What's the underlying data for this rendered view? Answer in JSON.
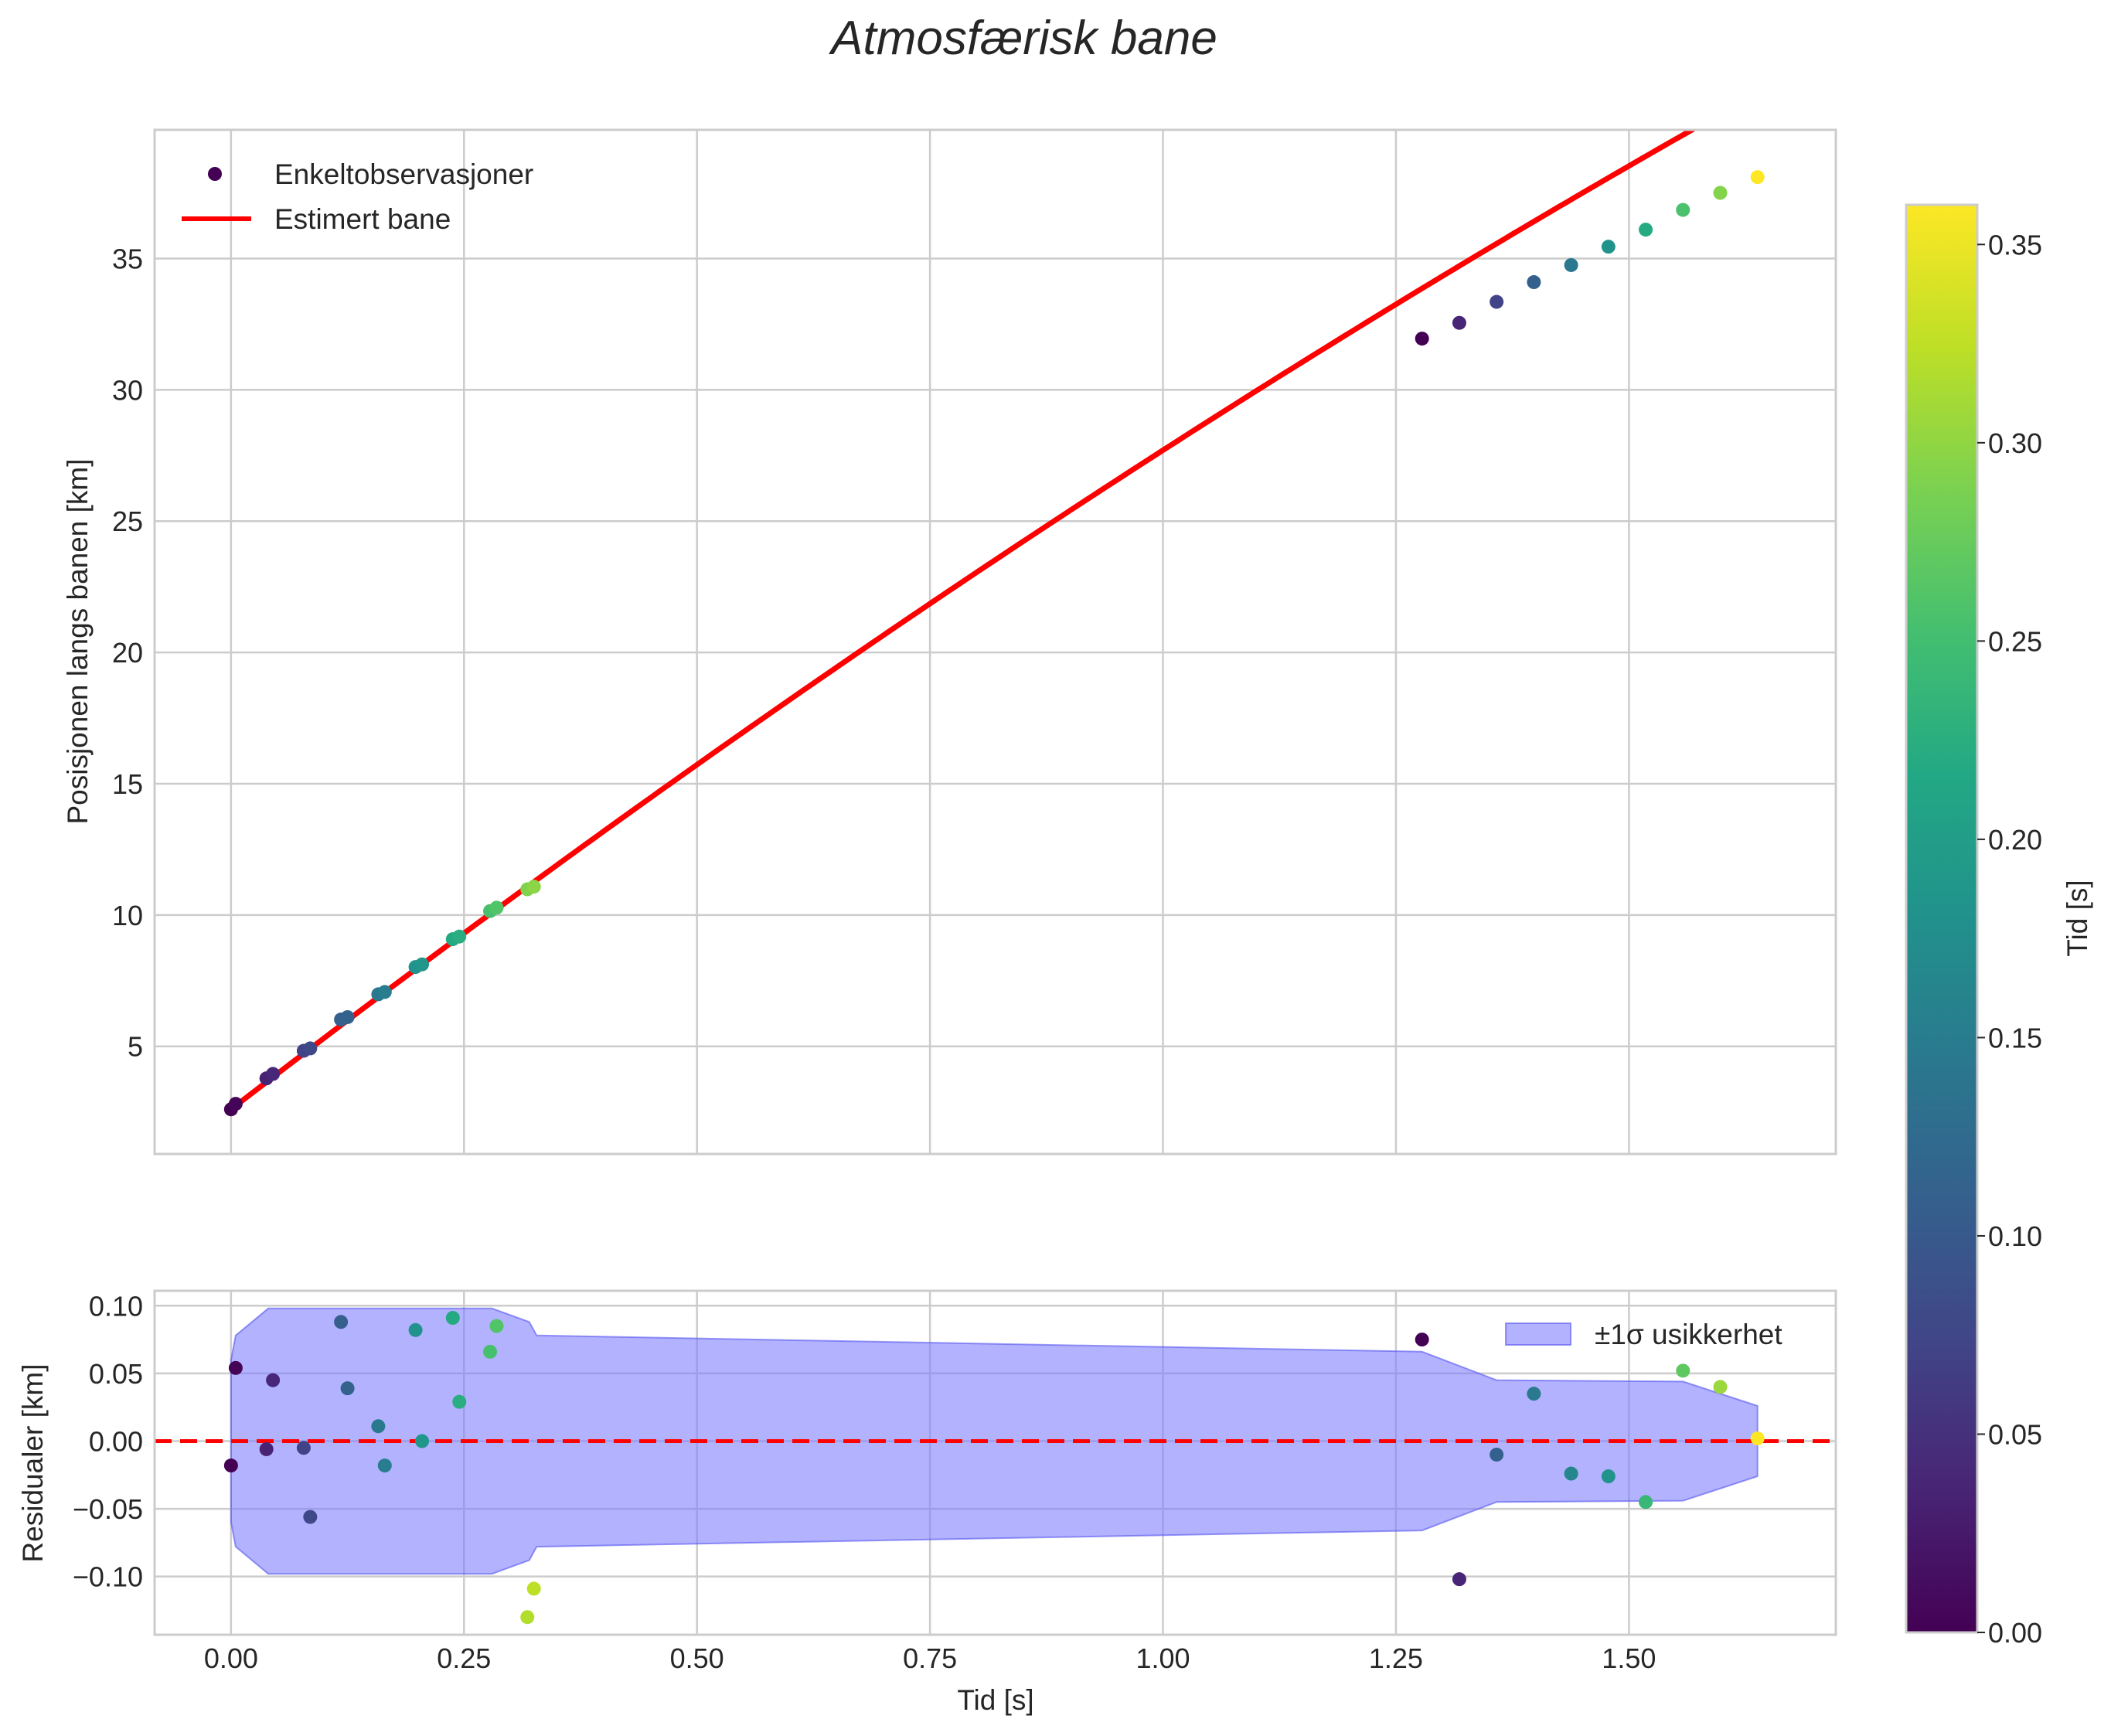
{
  "figure": {
    "title": "Atmosfærisk bane"
  },
  "chart_data": [
    {
      "type": "scatter",
      "panel": "top",
      "xlabel": "",
      "ylabel": "Posisjonen langs banen [km]",
      "xlim": [
        -0.082,
        1.722
      ],
      "ylim": [
        0.9,
        39.9
      ],
      "xticks": [
        0.0,
        0.25,
        0.5,
        0.75,
        1.0,
        1.25,
        1.5
      ],
      "yticks": [
        5,
        10,
        15,
        20,
        25,
        30,
        35
      ],
      "ytick_labels": [
        "5",
        "10",
        "15",
        "20",
        "25",
        "30",
        "35"
      ],
      "grid": true,
      "legend": {
        "placement": "top-left",
        "entries": [
          "Enkeltobservasjoner",
          "Estimert bane"
        ]
      },
      "series": [
        {
          "name": "Enkeltobservasjoner",
          "kind": "scatter",
          "color_by": "Tid [s]",
          "points": [
            {
              "t": 0.0,
              "y": 2.6,
              "c": 0.0
            },
            {
              "t": 0.005,
              "y": 2.81,
              "c": 0.004
            },
            {
              "t": 0.038,
              "y": 3.78,
              "c": 0.034
            },
            {
              "t": 0.045,
              "y": 3.95,
              "c": 0.041
            },
            {
              "t": 0.078,
              "y": 4.83,
              "c": 0.071
            },
            {
              "t": 0.085,
              "y": 4.92,
              "c": 0.078
            },
            {
              "t": 0.118,
              "y": 6.02,
              "c": 0.108
            },
            {
              "t": 0.125,
              "y": 6.11,
              "c": 0.114
            },
            {
              "t": 0.158,
              "y": 6.98,
              "c": 0.144
            },
            {
              "t": 0.165,
              "y": 7.07,
              "c": 0.151
            },
            {
              "t": 0.198,
              "y": 8.02,
              "c": 0.181
            },
            {
              "t": 0.205,
              "y": 8.12,
              "c": 0.188
            },
            {
              "t": 0.238,
              "y": 9.08,
              "c": 0.218
            },
            {
              "t": 0.245,
              "y": 9.18,
              "c": 0.224
            },
            {
              "t": 0.278,
              "y": 10.15,
              "c": 0.254
            },
            {
              "t": 0.285,
              "y": 10.28,
              "c": 0.261
            },
            {
              "t": 0.318,
              "y": 10.98,
              "c": 0.291
            },
            {
              "t": 0.325,
              "y": 11.08,
              "c": 0.297
            },
            {
              "t": 1.278,
              "y": 31.95,
              "c": 0.0
            },
            {
              "t": 1.318,
              "y": 32.55,
              "c": 0.037
            },
            {
              "t": 1.358,
              "y": 33.35,
              "c": 0.073
            },
            {
              "t": 1.398,
              "y": 34.1,
              "c": 0.11
            },
            {
              "t": 1.438,
              "y": 34.75,
              "c": 0.146
            },
            {
              "t": 1.478,
              "y": 35.45,
              "c": 0.183
            },
            {
              "t": 1.518,
              "y": 36.1,
              "c": 0.219
            },
            {
              "t": 1.558,
              "y": 36.85,
              "c": 0.256
            },
            {
              "t": 1.598,
              "y": 37.5,
              "c": 0.293
            },
            {
              "t": 1.638,
              "y": 38.1,
              "c": 0.36
            }
          ]
        },
        {
          "name": "Estimert bane",
          "kind": "line",
          "color": "#ff0000",
          "model": {
            "a": 2.6,
            "b": 27.4,
            "c": -2.3
          },
          "x_range": [
            0.0,
            1.638
          ]
        }
      ]
    },
    {
      "type": "scatter",
      "panel": "bottom",
      "xlabel": "Tid [s]",
      "ylabel": "Residualer [km]",
      "xlim": [
        -0.082,
        1.722
      ],
      "ylim": [
        -0.143,
        0.111
      ],
      "xticks": [
        0.0,
        0.25,
        0.5,
        0.75,
        1.0,
        1.25,
        1.5
      ],
      "xtick_labels": [
        "0.00",
        "0.25",
        "0.50",
        "0.75",
        "1.00",
        "1.25",
        "1.50"
      ],
      "yticks": [
        -0.1,
        -0.05,
        0.0,
        0.05,
        0.1
      ],
      "ytick_labels": [
        "−0.10",
        "−0.05",
        "0.00",
        "0.05",
        "0.10"
      ],
      "grid": true,
      "legend": {
        "placement": "top-right",
        "entries": [
          "±1σ usikkerhet"
        ]
      },
      "zero_line": {
        "y": 0.0,
        "color": "#ff0000",
        "style": "dashed"
      },
      "uncertainty_band": {
        "color": "#7b7bff",
        "t": [
          0.0,
          0.005,
          0.04,
          0.28,
          0.32,
          0.328,
          1.278,
          1.358,
          1.558,
          1.638
        ],
        "sigma": [
          0.06,
          0.078,
          0.098,
          0.098,
          0.088,
          0.078,
          0.066,
          0.045,
          0.044,
          0.026
        ]
      },
      "points": [
        {
          "t": 0.0,
          "r": -0.018,
          "c": 0.0
        },
        {
          "t": 0.005,
          "r": 0.054,
          "c": 0.004
        },
        {
          "t": 0.038,
          "r": -0.006,
          "c": 0.034
        },
        {
          "t": 0.045,
          "r": 0.045,
          "c": 0.041
        },
        {
          "t": 0.078,
          "r": -0.005,
          "c": 0.071
        },
        {
          "t": 0.085,
          "r": -0.056,
          "c": 0.078
        },
        {
          "t": 0.118,
          "r": 0.088,
          "c": 0.108
        },
        {
          "t": 0.125,
          "r": 0.039,
          "c": 0.114
        },
        {
          "t": 0.158,
          "r": 0.011,
          "c": 0.144
        },
        {
          "t": 0.165,
          "r": -0.018,
          "c": 0.151
        },
        {
          "t": 0.198,
          "r": 0.082,
          "c": 0.181
        },
        {
          "t": 0.205,
          "r": 0.0,
          "c": 0.188
        },
        {
          "t": 0.238,
          "r": 0.091,
          "c": 0.218
        },
        {
          "t": 0.245,
          "r": 0.029,
          "c": 0.224
        },
        {
          "t": 0.278,
          "r": 0.066,
          "c": 0.254
        },
        {
          "t": 0.285,
          "r": 0.085,
          "c": 0.261
        },
        {
          "t": 0.318,
          "r": -0.13,
          "c": 0.318
        },
        {
          "t": 0.325,
          "r": -0.109,
          "c": 0.324
        },
        {
          "t": 1.278,
          "r": 0.075,
          "c": 0.0
        },
        {
          "t": 1.318,
          "r": -0.102,
          "c": 0.037
        },
        {
          "t": 1.358,
          "r": -0.01,
          "c": 0.11
        },
        {
          "t": 1.398,
          "r": 0.035,
          "c": 0.146
        },
        {
          "t": 1.438,
          "r": -0.024,
          "c": 0.165
        },
        {
          "t": 1.478,
          "r": -0.026,
          "c": 0.183
        },
        {
          "t": 1.518,
          "r": -0.045,
          "c": 0.24
        },
        {
          "t": 1.558,
          "r": 0.052,
          "c": 0.27
        },
        {
          "t": 1.598,
          "r": 0.04,
          "c": 0.305
        },
        {
          "t": 1.638,
          "r": 0.002,
          "c": 0.36
        }
      ]
    },
    {
      "type": "colorbar",
      "label": "Tid [s]",
      "colormap": "viridis",
      "range": [
        0.0,
        0.36
      ],
      "ticks": [
        0.0,
        0.05,
        0.1,
        0.15,
        0.2,
        0.25,
        0.3,
        0.35
      ],
      "tick_labels": [
        "0.00",
        "0.05",
        "0.10",
        "0.15",
        "0.20",
        "0.25",
        "0.30",
        "0.35"
      ]
    }
  ]
}
